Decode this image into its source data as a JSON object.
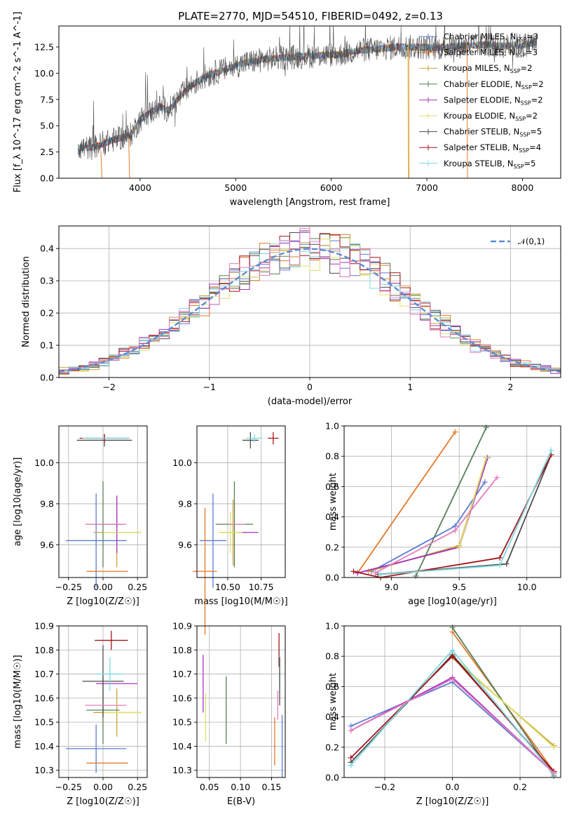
{
  "colors": {
    "chab_miles": "#5b7bd4",
    "salp_miles": "#e2792a",
    "krou_miles": "#c8a33c",
    "chab_elodie": "#57805a",
    "salp_elodie": "#a634c0",
    "krou_elodie": "#dde26a",
    "chab_stelib": "#4d4d4d",
    "salp_stelib": "#a3141c",
    "krou_stelib": "#7dd8e0",
    "pink": "#e47bbd",
    "gauss": "#5b8bd6"
  },
  "chart_data": [
    {
      "id": "spectrum",
      "type": "line",
      "title": "PLATE=2770, MJD=54510, FIBERID=0492, z=0.13",
      "xlabel": "wavelength [Angstrom, rest frame]",
      "ylabel": "Flux [f_λ 10^-17 erg cm^-2 s^-1 A^-1]",
      "xlim": [
        3150,
        8400
      ],
      "ylim": [
        0,
        14.5
      ],
      "xticks": [
        "4000",
        "5000",
        "6000",
        "7000",
        "8000"
      ],
      "yticks": [
        "0.0",
        "2.5",
        "5.0",
        "7.5",
        "10.0",
        "12.5"
      ],
      "legend_position": "upper right",
      "legend": [
        {
          "label": "Chabrier MILES, N",
          "sub": "SSP",
          "tail": "=3"
        },
        {
          "label": "Salpeter MILES, N",
          "sub": "SSP",
          "tail": "=3"
        },
        {
          "label": "Kroupa MILES, N",
          "sub": "SSP",
          "tail": "=2"
        },
        {
          "label": "Chabrier ELODIE, N",
          "sub": "SSP",
          "tail": "=2"
        },
        {
          "label": "Salpeter ELODIE, N",
          "sub": "SSP",
          "tail": "=2"
        },
        {
          "label": "Kroupa ELODIE, N",
          "sub": "SSP",
          "tail": "=2"
        },
        {
          "label": "Chabrier STELIB, N",
          "sub": "SSP",
          "tail": "=5"
        },
        {
          "label": "Salpeter STELIB, N",
          "sub": "SSP",
          "tail": "=4"
        },
        {
          "label": "Kroupa STELIB, N",
          "sub": "SSP",
          "tail": "=5"
        }
      ],
      "continuum": [
        [
          3350,
          2.9
        ],
        [
          3500,
          2.9
        ],
        [
          3700,
          3.6
        ],
        [
          3900,
          4.1
        ],
        [
          4000,
          5.6
        ],
        [
          4200,
          6.8
        ],
        [
          4300,
          6.5
        ],
        [
          4500,
          8.6
        ],
        [
          4700,
          9.8
        ],
        [
          4900,
          10.4
        ],
        [
          5100,
          11.0
        ],
        [
          5300,
          11.3
        ],
        [
          5500,
          11.5
        ],
        [
          5700,
          11.6
        ],
        [
          5900,
          11.7
        ],
        [
          6100,
          11.8
        ],
        [
          6300,
          12.2
        ],
        [
          6500,
          12.3
        ],
        [
          6700,
          12.5
        ],
        [
          6900,
          12.5
        ],
        [
          7100,
          12.4
        ],
        [
          7400,
          12.6
        ],
        [
          7600,
          12.7
        ],
        [
          7800,
          12.6
        ],
        [
          8000,
          12.7
        ],
        [
          8150,
          12.9
        ]
      ]
    },
    {
      "id": "residuals",
      "type": "line",
      "xlabel": "(data-model)/error",
      "ylabel": "Normed distribution",
      "xlim": [
        -2.5,
        2.5
      ],
      "ylim": [
        0,
        0.47
      ],
      "xticks": [
        "−2",
        "−1",
        "0",
        "1",
        "2"
      ],
      "yticks": [
        "0.0",
        "0.1",
        "0.2",
        "0.3",
        "0.4"
      ],
      "grid": true,
      "legend": "𝒩(0,1)",
      "gaussian": {
        "mu": 0,
        "sigma": 1
      }
    },
    {
      "id": "age_Z",
      "type": "scatter",
      "xlabel": "Z [log10(Z/Z☉)]",
      "ylabel": "age [log10(age/yr)]",
      "xlim": [
        -0.32,
        0.32
      ],
      "ylim": [
        9.44,
        10.18
      ],
      "xticks": [
        "−0.25",
        "0.00",
        "0.25"
      ],
      "yticks": [
        "9.6",
        "9.8",
        "10.0"
      ],
      "grid": true,
      "points": [
        {
          "c": "chab_miles",
          "x": -0.05,
          "y": 9.62,
          "ex": 0.22,
          "ey": 0.23
        },
        {
          "c": "salp_miles",
          "x": 0.03,
          "y": 9.47,
          "ex": 0.15,
          "ey": 0.0
        },
        {
          "c": "krou_miles",
          "x": 0.1,
          "y": 9.66,
          "ex": 0.17,
          "ey": 0.17
        },
        {
          "c": "chab_elodie",
          "x": 0.0,
          "y": 9.7,
          "ex": 0.12,
          "ey": 0.21
        },
        {
          "c": "salp_elodie",
          "x": 0.1,
          "y": 9.7,
          "ex": 0.05,
          "ey": 0.14
        },
        {
          "c": "krou_elodie",
          "x": 0.14,
          "y": 9.66,
          "ex": 0.14,
          "ey": 0.0
        },
        {
          "c": "chab_stelib",
          "x": 0.01,
          "y": 10.11,
          "ex": 0.2,
          "ey": 0.03
        },
        {
          "c": "salp_stelib",
          "x": 0.01,
          "y": 10.12,
          "ex": 0.18,
          "ey": 0.02
        },
        {
          "c": "krou_stelib",
          "x": 0.02,
          "y": 10.12,
          "ex": 0.17,
          "ey": 0.0
        },
        {
          "c": "pink",
          "x": 0.02,
          "y": 9.7,
          "ex": 0.15,
          "ey": 0.0
        }
      ]
    },
    {
      "id": "age_mass",
      "type": "scatter",
      "xlabel": "mass [log10(M/M☉)]",
      "ylabel": "",
      "xlim": [
        10.27,
        10.93
      ],
      "ylim": [
        9.44,
        10.18
      ],
      "xticks": [
        "10.50",
        "10.75"
      ],
      "yticks": [
        "9.6",
        "9.8",
        "10.0"
      ],
      "grid": true,
      "points": [
        {
          "c": "chab_miles",
          "x": 10.39,
          "y": 9.62,
          "ex": 0.1,
          "ey": 0.23
        },
        {
          "c": "salp_miles",
          "x": 10.33,
          "y": 9.47,
          "ex": 0.09,
          "ey": 0.31
        },
        {
          "c": "krou_miles",
          "x": 10.54,
          "y": 9.66,
          "ex": 0.1,
          "ey": 0.16
        },
        {
          "c": "chab_elodie",
          "x": 10.55,
          "y": 9.7,
          "ex": 0.14,
          "ey": 0.21
        },
        {
          "c": "salp_elodie",
          "x": 10.66,
          "y": 9.66,
          "ex": 0.07,
          "ey": 0.0
        },
        {
          "c": "krou_elodie",
          "x": 10.52,
          "y": 9.66,
          "ex": 0.09,
          "ey": 0.1
        },
        {
          "c": "chab_stelib",
          "x": 10.67,
          "y": 10.11,
          "ex": 0.06,
          "ey": 0.04
        },
        {
          "c": "salp_stelib",
          "x": 10.84,
          "y": 10.12,
          "ex": 0.04,
          "ey": 0.03
        },
        {
          "c": "krou_stelib",
          "x": 10.7,
          "y": 10.12,
          "ex": 0.06,
          "ey": 0.02
        },
        {
          "c": "pink",
          "x": 10.57,
          "y": 9.7,
          "ex": 0.06,
          "ey": 0.0
        }
      ]
    },
    {
      "id": "weight_age",
      "type": "line",
      "xlabel": "age [log10(age/yr)]",
      "ylabel": "mass weight",
      "xlim": [
        8.65,
        10.25
      ],
      "ylim": [
        0,
        1
      ],
      "xticks": [
        "9.0",
        "9.5",
        "10.0"
      ],
      "yticks": [
        "0.0",
        "0.2",
        "0.4",
        "0.6",
        "0.8",
        "1.0"
      ],
      "grid": true,
      "series": [
        {
          "c": "chab_miles",
          "pts": [
            [
              8.85,
              0.04
            ],
            [
              9.47,
              0.34
            ],
            [
              9.69,
              0.63
            ]
          ]
        },
        {
          "c": "salp_miles",
          "pts": [
            [
              8.75,
              0.03
            ],
            [
              9.47,
              0.96
            ]
          ]
        },
        {
          "c": "krou_miles",
          "pts": [
            [
              8.83,
              0.04
            ],
            [
              9.5,
              0.21
            ],
            [
              9.7,
              0.79
            ]
          ]
        },
        {
          "c": "chab_elodie",
          "pts": [
            [
              9.18,
              0.01
            ],
            [
              9.7,
              0.99
            ]
          ]
        },
        {
          "c": "salp_elodie",
          "pts": [
            [
              8.75,
              0.03
            ],
            [
              9.5,
              0.2
            ],
            [
              9.71,
              0.79
            ]
          ]
        },
        {
          "c": "krou_elodie",
          "pts": [
            [
              9.5,
              0.2
            ],
            [
              9.7,
              0.79
            ]
          ]
        },
        {
          "c": "chab_stelib",
          "pts": [
            [
              8.9,
              0.02
            ],
            [
              9.85,
              0.09
            ],
            [
              10.18,
              0.81
            ]
          ]
        },
        {
          "c": "salp_stelib",
          "pts": [
            [
              8.72,
              0.04
            ],
            [
              8.92,
              0.0
            ],
            [
              9.8,
              0.13
            ],
            [
              10.18,
              0.81
            ]
          ]
        },
        {
          "c": "krou_stelib",
          "pts": [
            [
              8.92,
              0.02
            ],
            [
              9.8,
              0.08
            ],
            [
              10.18,
              0.84
            ]
          ]
        },
        {
          "c": "pink",
          "pts": [
            [
              8.88,
              0.03
            ],
            [
              9.47,
              0.31
            ],
            [
              9.78,
              0.66
            ]
          ]
        }
      ]
    },
    {
      "id": "mass_Z",
      "type": "scatter",
      "xlabel": "Z [log10(Z/Z☉)]",
      "ylabel": "mass [log10(M/M☉)]",
      "xlim": [
        -0.32,
        0.32
      ],
      "ylim": [
        10.27,
        10.9
      ],
      "xticks": [
        "−0.25",
        "0.00",
        "0.25"
      ],
      "yticks": [
        "10.3",
        "10.4",
        "10.5",
        "10.6",
        "10.7",
        "10.8",
        "10.9"
      ],
      "grid": true,
      "points": [
        {
          "c": "chab_miles",
          "x": -0.05,
          "y": 10.39,
          "ex": 0.22,
          "ey": 0.1
        },
        {
          "c": "salp_miles",
          "x": 0.03,
          "y": 10.33,
          "ex": 0.15,
          "ey": 0.0
        },
        {
          "c": "krou_miles",
          "x": 0.1,
          "y": 10.54,
          "ex": 0.17,
          "ey": 0.1
        },
        {
          "c": "chab_elodie",
          "x": 0.0,
          "y": 10.55,
          "ex": 0.12,
          "ey": 0.14
        },
        {
          "c": "salp_elodie",
          "x": 0.1,
          "y": 10.66,
          "ex": 0.15,
          "ey": 0.0
        },
        {
          "c": "krou_elodie",
          "x": 0.14,
          "y": 10.54,
          "ex": 0.14,
          "ey": 0.0
        },
        {
          "c": "chab_stelib",
          "x": 0.0,
          "y": 10.67,
          "ex": 0.15,
          "ey": 0.15
        },
        {
          "c": "salp_stelib",
          "x": 0.06,
          "y": 10.84,
          "ex": 0.12,
          "ey": 0.04
        },
        {
          "c": "krou_stelib",
          "x": 0.05,
          "y": 10.7,
          "ex": 0.1,
          "ey": 0.07
        },
        {
          "c": "pink",
          "x": 0.02,
          "y": 10.57,
          "ex": 0.15,
          "ey": 0.0
        }
      ]
    },
    {
      "id": "mass_ebv",
      "type": "scatter",
      "xlabel": "E(B-V)",
      "ylabel": "",
      "xlim": [
        0.03,
        0.172
      ],
      "ylim": [
        10.27,
        10.9
      ],
      "xticks": [
        "0.05",
        "0.10",
        "0.15"
      ],
      "yticks": [
        "10.3",
        "10.4",
        "10.5",
        "10.6",
        "10.7",
        "10.8",
        "10.9"
      ],
      "grid": true,
      "points": [
        {
          "c": "salp_elodie",
          "x": 0.04,
          "y": 10.66,
          "ey": 0.12
        },
        {
          "c": "krou_elodie",
          "x": 0.044,
          "y": 10.52,
          "ey": 0.1
        },
        {
          "c": "chab_elodie",
          "x": 0.077,
          "y": 10.55,
          "ey": 0.14
        },
        {
          "c": "salp_miles",
          "x": 0.155,
          "y": 10.42,
          "ey": 0.1
        },
        {
          "c": "pink",
          "x": 0.16,
          "y": 10.57,
          "ey": 0.06
        },
        {
          "c": "salp_stelib",
          "x": 0.162,
          "y": 10.8,
          "ey": 0.07
        },
        {
          "c": "krou_stelib",
          "x": 0.163,
          "y": 10.7,
          "ey": 0.08
        },
        {
          "c": "chab_stelib",
          "x": 0.163,
          "y": 10.67,
          "ey": 0.1
        },
        {
          "c": "chab_miles",
          "x": 0.167,
          "y": 10.4,
          "ey": 0.13
        }
      ]
    },
    {
      "id": "weight_Z",
      "type": "line",
      "xlabel": "Z [log10(Z/Z☉)]",
      "ylabel": "mass weight",
      "xlim": [
        -0.32,
        0.32
      ],
      "ylim": [
        0,
        1
      ],
      "xticks": [
        "−0.2",
        "0.0",
        "0.2"
      ],
      "yticks": [
        "0.0",
        "0.2",
        "0.4",
        "0.6",
        "0.8",
        "1.0"
      ],
      "grid": true,
      "series": [
        {
          "c": "chab_miles",
          "pts": [
            [
              -0.3,
              0.34
            ],
            [
              0.0,
              0.63
            ],
            [
              0.3,
              0.03
            ]
          ]
        },
        {
          "c": "salp_miles",
          "pts": [
            [
              0.0,
              0.96
            ],
            [
              0.3,
              0.04
            ]
          ]
        },
        {
          "c": "krou_miles",
          "pts": [
            [
              0.0,
              0.79
            ],
            [
              0.3,
              0.21
            ]
          ]
        },
        {
          "c": "chab_elodie",
          "pts": [
            [
              0.0,
              0.99
            ],
            [
              0.3,
              0.01
            ]
          ]
        },
        {
          "c": "salp_elodie",
          "pts": [
            [
              -0.3,
              0.31
            ],
            [
              0.0,
              0.66
            ],
            [
              0.3,
              0.03
            ]
          ]
        },
        {
          "c": "krou_elodie",
          "pts": [
            [
              0.0,
              0.8
            ],
            [
              0.3,
              0.2
            ]
          ]
        },
        {
          "c": "chab_stelib",
          "pts": [
            [
              -0.3,
              0.1
            ],
            [
              0.0,
              0.81
            ],
            [
              0.3,
              0.03
            ]
          ]
        },
        {
          "c": "salp_stelib",
          "pts": [
            [
              -0.3,
              0.13
            ],
            [
              0.0,
              0.8
            ],
            [
              0.3,
              0.04
            ]
          ]
        },
        {
          "c": "krou_stelib",
          "pts": [
            [
              -0.3,
              0.08
            ],
            [
              0.0,
              0.84
            ],
            [
              0.3,
              0.02
            ]
          ]
        },
        {
          "c": "pink",
          "pts": [
            [
              -0.3,
              0.31
            ],
            [
              0.0,
              0.65
            ],
            [
              0.3,
              0.03
            ]
          ]
        }
      ]
    }
  ]
}
